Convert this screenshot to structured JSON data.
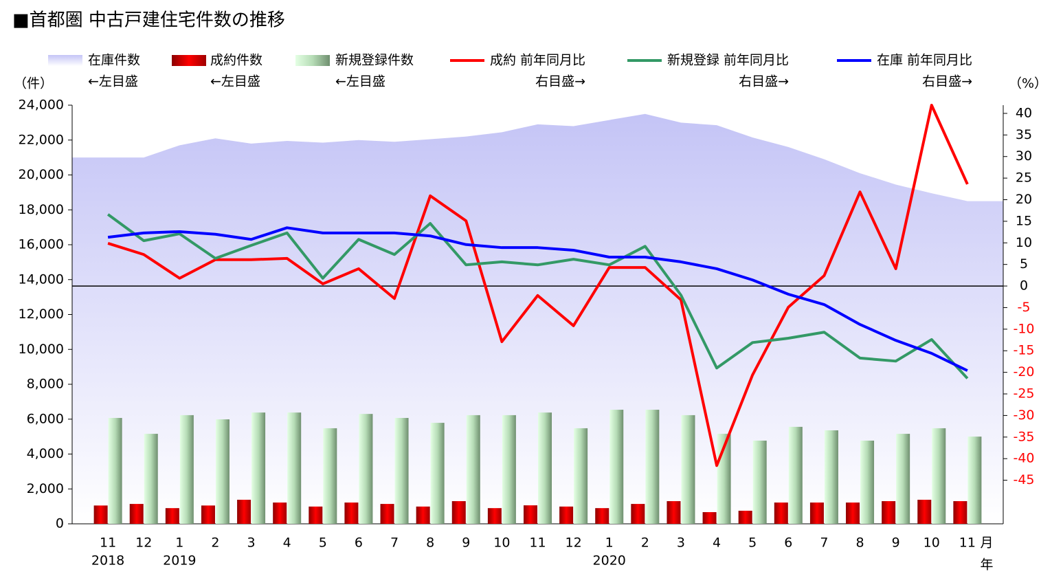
{
  "chart_data": {
    "type": "combo",
    "title": "■首都圏 中古戸建住宅件数の推移",
    "y_label": "（件）",
    "y2_label": "（%）",
    "x_month_unit": "月",
    "x_year_unit": "年",
    "categories": [
      "11",
      "12",
      "1",
      "2",
      "3",
      "4",
      "5",
      "6",
      "7",
      "8",
      "9",
      "10",
      "11",
      "12",
      "1",
      "2",
      "3",
      "4",
      "5",
      "6",
      "7",
      "8",
      "9",
      "10",
      "11"
    ],
    "year_labels": [
      "2018",
      null,
      "2019",
      null,
      null,
      null,
      null,
      null,
      null,
      null,
      null,
      null,
      null,
      null,
      "2020",
      null,
      null,
      null,
      null,
      null,
      null,
      null,
      null,
      null,
      null
    ],
    "ylim": [
      0,
      24000
    ],
    "yticks": [
      {
        "value": 0,
        "label": "0"
      },
      {
        "value": 2000,
        "label": "2,000"
      },
      {
        "value": 4000,
        "label": "4,000"
      },
      {
        "value": 6000,
        "label": "6,000"
      },
      {
        "value": 8000,
        "label": "8,000"
      },
      {
        "value": 10000,
        "label": "10,000"
      },
      {
        "value": 12000,
        "label": "12,000"
      },
      {
        "value": 14000,
        "label": "14,000"
      },
      {
        "value": 16000,
        "label": "16,000"
      },
      {
        "value": 18000,
        "label": "18,000"
      },
      {
        "value": 20000,
        "label": "20,000"
      },
      {
        "value": 22000,
        "label": "22,000"
      },
      {
        "value": 24000,
        "label": "24,000"
      }
    ],
    "y2lim": [
      -55.1,
      41.9
    ],
    "y2ticks": [
      40,
      35,
      30,
      25,
      20,
      15,
      10,
      5,
      0,
      -5,
      -10,
      -15,
      -20,
      -25,
      -30,
      -35,
      -40,
      -45
    ],
    "y2tick_negative_color": "#ff0000",
    "series": [
      {
        "name": "在庫件数",
        "legend_note": "←左目盛",
        "type": "area",
        "color": "#c4c4f6",
        "values": [
          21000,
          21000,
          21700,
          22100,
          21800,
          21950,
          21850,
          22000,
          21900,
          22050,
          22200,
          22450,
          22900,
          22800,
          23150,
          23500,
          23000,
          22850,
          22150,
          21600,
          20900,
          20100,
          19450,
          18950,
          18500
        ]
      },
      {
        "name": "成約件数",
        "legend_note": "←左目盛",
        "type": "bar",
        "color": "#ff0000",
        "values": [
          1050,
          1140,
          900,
          1050,
          1380,
          1220,
          990,
          1220,
          1140,
          990,
          1300,
          900,
          1060,
          990,
          900,
          1140,
          1300,
          670,
          750,
          1220,
          1220,
          1220,
          1300,
          1380,
          1300
        ]
      },
      {
        "name": "新規登録件数",
        "legend_note": "←左目盛",
        "type": "bar",
        "color": "#8fae8f",
        "values": [
          6070,
          5160,
          6230,
          5990,
          6380,
          6380,
          5480,
          6300,
          6070,
          5790,
          6230,
          6230,
          6380,
          5480,
          6540,
          6540,
          6230,
          5160,
          4770,
          5560,
          5360,
          4770,
          5160,
          5480,
          5000
        ]
      },
      {
        "name": "成約 前年同月比",
        "legend_note": "右目盛→",
        "type": "line",
        "axis": "y2",
        "color": "#ff0000",
        "values": [
          9.9,
          7.3,
          1.8,
          6.1,
          6.1,
          6.4,
          0.5,
          4.0,
          -2.9,
          20.9,
          15.1,
          -12.9,
          -2.2,
          -9.2,
          4.3,
          4.3,
          -3.2,
          -41.6,
          -20.6,
          -4.9,
          2.4,
          21.8,
          4.0,
          41.9,
          23.6
        ]
      },
      {
        "name": "新規登録 前年同月比",
        "legend_note": "右目盛→",
        "type": "line",
        "axis": "y2",
        "color": "#339966",
        "values": [
          16.6,
          10.5,
          12.1,
          6.4,
          9.4,
          12.3,
          1.8,
          10.8,
          7.3,
          14.5,
          4.9,
          5.6,
          4.9,
          6.2,
          4.9,
          9.2,
          -2.1,
          -19.0,
          -13.1,
          -12.1,
          -10.7,
          -16.7,
          -17.4,
          -12.4,
          -21.4
        ]
      },
      {
        "name": "在庫 前年同月比",
        "legend_note": "右目盛→",
        "type": "line",
        "axis": "y2",
        "color": "#0000ff",
        "values": [
          11.3,
          12.3,
          12.6,
          12.0,
          10.8,
          13.5,
          12.3,
          12.3,
          12.3,
          11.6,
          9.6,
          8.9,
          8.9,
          8.3,
          6.7,
          6.7,
          5.6,
          4.0,
          1.4,
          -1.9,
          -4.3,
          -8.9,
          -12.6,
          -15.6,
          -19.6
        ]
      }
    ]
  }
}
